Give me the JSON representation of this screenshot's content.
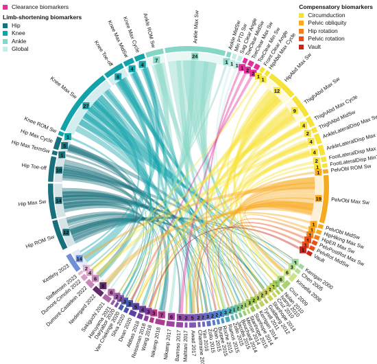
{
  "legends": {
    "clearance": {
      "items": [
        {
          "label": "Clearance biomarkers",
          "color": "#e0309a"
        }
      ]
    },
    "limb": {
      "title": "Limb-shortening biomarkers",
      "items": [
        {
          "label": "Hip",
          "color": "#17707c"
        },
        {
          "label": "Knee",
          "color": "#11a3a9"
        },
        {
          "label": "Ankle",
          "color": "#86d6c6"
        },
        {
          "label": "Global",
          "color": "#c6ece6"
        }
      ]
    },
    "compensatory": {
      "title": "Compensatory biomarkers",
      "items": [
        {
          "label": "Circumduction",
          "color": "#f7e23a"
        },
        {
          "label": "Pelvic obliquity",
          "color": "#f8aa1e"
        },
        {
          "label": "Hip rotation",
          "color": "#f07f1d"
        },
        {
          "label": "Pelvic rotation",
          "color": "#e8501b"
        },
        {
          "label": "Vault",
          "color": "#c92417"
        }
      ]
    }
  },
  "biomarkers": [
    {
      "label": "Hip ROM Sw",
      "count": "12",
      "group": "Hip"
    },
    {
      "label": "Hip Max Sw",
      "count": "14",
      "group": "Hip"
    },
    {
      "label": "Hip Toe-off",
      "count": "10",
      "group": "Hip"
    },
    {
      "label": "Hip Max TermSw",
      "count": "1",
      "group": "Hip"
    },
    {
      "label": "Hip Max Cycle",
      "count": "5",
      "group": "Hip"
    },
    {
      "label": "Knee ROM Sw",
      "count": "1",
      "group": "Knee"
    },
    {
      "label": "Knee Max Sw",
      "count": "27",
      "group": "Knee"
    },
    {
      "label": "Knee Toe-off",
      "count": "8",
      "group": "Knee"
    },
    {
      "label": "Knee Max MidSw",
      "count": "4",
      "group": "Knee"
    },
    {
      "label": "Knee Max Cycle",
      "count": "4",
      "group": "Knee"
    },
    {
      "label": "Ankle ROM Sw",
      "count": "7",
      "group": "Ankle"
    },
    {
      "label": "Ankle Max Sw",
      "count": "24",
      "group": "Ankle"
    },
    {
      "label": "Ankle MidSw",
      "count": "1",
      "group": "Ankle"
    },
    {
      "label": "Min PTD Sw",
      "count": "1",
      "group": "Global"
    },
    {
      "label": "Sag Clear Angle",
      "count": "1",
      "group": "Global"
    },
    {
      "label": "ToeClear MidSw",
      "count": "1",
      "group": "Clearance"
    },
    {
      "label": "ToeClear Max Sw",
      "count": "2",
      "group": "Clearance"
    },
    {
      "label": "ToeClear Min Sw",
      "count": "2",
      "group": "Clearance"
    },
    {
      "label": "Front Clear Angle",
      "count": "1",
      "group": "Circumduction"
    },
    {
      "label": "HipAbd Max Cycle",
      "count": "1",
      "group": "Circumduction"
    },
    {
      "label": "HipAbd Max Sw",
      "count": "12",
      "group": "Circumduction"
    },
    {
      "label": "ThighAbd Max Sw",
      "count": "9",
      "group": "Circumduction"
    },
    {
      "label": "ThighAbd Max Cycle",
      "count": "4",
      "group": "Circumduction"
    },
    {
      "label": "ThighAbd MidSw",
      "count": "2",
      "group": "Circumduction"
    },
    {
      "label": "AnkleLateralDisp Max Sw",
      "count": "4",
      "group": "Circumduction"
    },
    {
      "label": "AnkleLateralDisp Max Cycle",
      "count": "4",
      "group": "Circumduction"
    },
    {
      "label": "FootLateralDisp Max Cycle",
      "count": "2",
      "group": "Circumduction"
    },
    {
      "label": "FootLateralDisp MinToeClear",
      "count": "1",
      "group": "Circumduction"
    },
    {
      "label": "PelvObl ROM Sw",
      "count": "1",
      "group": "Pelvic obliquity"
    },
    {
      "label": "PelvObl Max Sw",
      "count": "19",
      "group": "Pelvic obliquity"
    },
    {
      "label": "PelvObl MidSw",
      "count": "1",
      "group": "Pelvic obliquity"
    },
    {
      "label": "HipHiking Max Sw",
      "count": "1",
      "group": "Pelvic obliquity"
    },
    {
      "label": "HipER Max Sw",
      "count": "1",
      "group": "Hip rotation"
    },
    {
      "label": "PelvPostRot Max Sw",
      "count": "1",
      "group": "Pelvic rotation"
    },
    {
      "label": "PelvRot MidSw",
      "count": "1",
      "group": "Pelvic rotation"
    },
    {
      "label": "Vault",
      "count": "1",
      "group": "Vault"
    }
  ],
  "studies": [
    {
      "label": "Kerrigan 2000",
      "count": "3",
      "color": "#9fd9a0"
    },
    {
      "label": "Chen 2005",
      "count": "3",
      "color": "#b5df93"
    },
    {
      "label": "Kinsella 2008",
      "count": "6",
      "color": "#cde386"
    },
    {
      "label": "Cruz 2009",
      "count": "6",
      "color": "#a9d46f"
    },
    {
      "label": "Nolan 2010",
      "count": "1",
      "color": "#8fc766"
    },
    {
      "label": "Ivanyi 2010",
      "count": "2",
      "color": "#b0cf5a"
    },
    {
      "label": "Cruz 2010",
      "count": "2",
      "color": "#c6d55b"
    },
    {
      "label": "Stanhope 2014",
      "count": "3",
      "color": "#d1cf5e"
    },
    {
      "label": "Goldberg 2012",
      "count": "2",
      "color": "#b9c35f"
    },
    {
      "label": "Tyrell 2011",
      "count": "3",
      "color": "#c0d06a"
    },
    {
      "label": "Kerrigan 2014",
      "count": "2",
      "color": "#acca58"
    },
    {
      "label": "Stanhope 2014",
      "count": "3",
      "color": "#9fc45c"
    },
    {
      "label": "Stanhope 2015",
      "count": "1",
      "color": "#b5d56e"
    },
    {
      "label": "Mercer 2014",
      "count": "2",
      "color": "#9ad080"
    },
    {
      "label": "Bouchard 2014",
      "count": "2",
      "color": "#7ec68a"
    },
    {
      "label": "Jacobs 2015",
      "count": "1",
      "color": "#6cbfa0"
    },
    {
      "label": "Zollo 2015",
      "count": "2",
      "color": "#5bb7b4"
    },
    {
      "label": "Ramos 2015",
      "count": "3",
      "color": "#4ea8c4"
    },
    {
      "label": "Roche 2015",
      "count": "2",
      "color": "#4a96cb"
    },
    {
      "label": "Burpee 2015",
      "count": "2",
      "color": "#4d86cc"
    },
    {
      "label": "Qian 2015",
      "count": "2",
      "color": "#5579c9"
    },
    {
      "label": "Zollo 2015",
      "count": "3",
      "color": "#5f70c4"
    },
    {
      "label": "Yao 2016",
      "count": "2",
      "color": "#6a68be"
    },
    {
      "label": "Chantraine 2016",
      "count": "2",
      "color": "#7560b8"
    },
    {
      "label": "Awad 2017",
      "count": "5",
      "color": "#7f58b1"
    },
    {
      "label": "Mahtani 2017",
      "count": "2",
      "color": "#8a50aa"
    },
    {
      "label": "Barroso 2017",
      "count": "5",
      "color": "#9549a2"
    },
    {
      "label": "Nikamp 2017",
      "count": "6",
      "color": "#a0439a"
    },
    {
      "label": "Nikamp 2018",
      "count": "7",
      "color": "#ab3d90"
    },
    {
      "label": "Wang 2018",
      "count": "3",
      "color": "#b63786"
    },
    {
      "label": "Reissman 2018",
      "count": "3",
      "color": "#8a3f9e"
    },
    {
      "label": "Abbas 2018",
      "count": "4",
      "color": "#6c3f9a"
    },
    {
      "label": "Dean 2020",
      "count": "5",
      "color": "#5a43a0"
    },
    {
      "label": "Silva 2020",
      "count": "3",
      "color": "#4c51a8"
    },
    {
      "label": "Van Criekinge 2020",
      "count": "3",
      "color": "#4660ae"
    },
    {
      "label": "Daryabor 2020",
      "count": "2",
      "color": "#7a52a8"
    },
    {
      "label": "Haruyama 2021",
      "count": "2",
      "color": "#9a5ca6"
    },
    {
      "label": "Sekiguchi 2021",
      "count": "6",
      "color": "#b068a4"
    },
    {
      "label": "Nedergard 2022",
      "count": "8",
      "color": "#5e2b64"
    },
    {
      "label": "Dumont-Castelein 2022",
      "count": "6",
      "color": "#c887b8"
    },
    {
      "label": "Dumont-Cimolin 2022",
      "count": "4",
      "color": "#d59fc6"
    },
    {
      "label": "Steffensen 2023",
      "count": "2",
      "color": "#e2b7d4"
    },
    {
      "label": "Kettlety 2023",
      "count": "14",
      "color": "#6f8fd6"
    }
  ]
}
